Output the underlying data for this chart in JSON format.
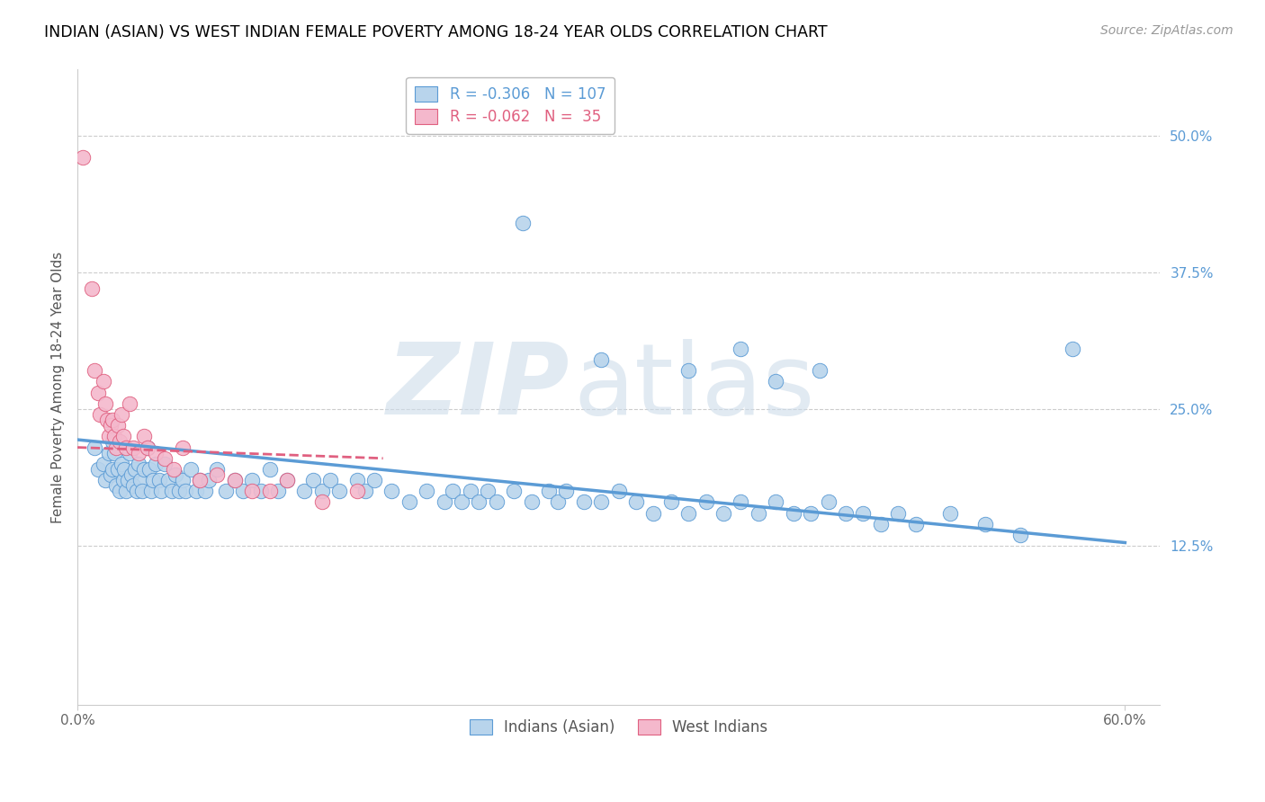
{
  "title": "INDIAN (ASIAN) VS WEST INDIAN FEMALE POVERTY AMONG 18-24 YEAR OLDS CORRELATION CHART",
  "source": "Source: ZipAtlas.com",
  "ylabel": "Female Poverty Among 18-24 Year Olds",
  "xlim": [
    0.0,
    0.62
  ],
  "ylim": [
    -0.02,
    0.56
  ],
  "x_tick_positions": [
    0.0,
    0.6
  ],
  "x_tick_labels": [
    "0.0%",
    "60.0%"
  ],
  "y_ticks_right": [
    0.5,
    0.375,
    0.25,
    0.125
  ],
  "y_tick_labels_right": [
    "50.0%",
    "37.5%",
    "25.0%",
    "12.5%"
  ],
  "legend_blue_r": "-0.306",
  "legend_blue_n": "107",
  "legend_pink_r": "-0.062",
  "legend_pink_n": "35",
  "blue_color": "#b8d4ec",
  "pink_color": "#f4b8cc",
  "line_blue": "#5b9bd5",
  "line_pink": "#e06080",
  "blue_scatter_x": [
    0.01,
    0.012,
    0.015,
    0.016,
    0.018,
    0.019,
    0.02,
    0.02,
    0.021,
    0.022,
    0.023,
    0.024,
    0.025,
    0.026,
    0.027,
    0.028,
    0.029,
    0.03,
    0.031,
    0.032,
    0.033,
    0.034,
    0.035,
    0.036,
    0.037,
    0.038,
    0.04,
    0.041,
    0.042,
    0.043,
    0.045,
    0.047,
    0.048,
    0.05,
    0.052,
    0.054,
    0.056,
    0.058,
    0.06,
    0.062,
    0.065,
    0.068,
    0.07,
    0.073,
    0.075,
    0.08,
    0.085,
    0.09,
    0.095,
    0.1,
    0.105,
    0.11,
    0.115,
    0.12,
    0.13,
    0.135,
    0.14,
    0.145,
    0.15,
    0.16,
    0.165,
    0.17,
    0.18,
    0.19,
    0.2,
    0.21,
    0.215,
    0.22,
    0.225,
    0.23,
    0.235,
    0.24,
    0.25,
    0.26,
    0.27,
    0.275,
    0.28,
    0.29,
    0.3,
    0.31,
    0.32,
    0.33,
    0.34,
    0.35,
    0.36,
    0.37,
    0.38,
    0.39,
    0.4,
    0.41,
    0.42,
    0.43,
    0.44,
    0.45,
    0.46,
    0.47,
    0.48,
    0.5,
    0.52,
    0.54,
    0.255,
    0.3,
    0.35,
    0.38,
    0.4,
    0.425,
    0.57
  ],
  "blue_scatter_y": [
    0.215,
    0.195,
    0.2,
    0.185,
    0.21,
    0.19,
    0.22,
    0.195,
    0.21,
    0.18,
    0.195,
    0.175,
    0.2,
    0.185,
    0.195,
    0.175,
    0.185,
    0.21,
    0.19,
    0.18,
    0.195,
    0.175,
    0.2,
    0.185,
    0.175,
    0.195,
    0.215,
    0.195,
    0.175,
    0.185,
    0.2,
    0.185,
    0.175,
    0.2,
    0.185,
    0.175,
    0.19,
    0.175,
    0.185,
    0.175,
    0.195,
    0.175,
    0.185,
    0.175,
    0.185,
    0.195,
    0.175,
    0.185,
    0.175,
    0.185,
    0.175,
    0.195,
    0.175,
    0.185,
    0.175,
    0.185,
    0.175,
    0.185,
    0.175,
    0.185,
    0.175,
    0.185,
    0.175,
    0.165,
    0.175,
    0.165,
    0.175,
    0.165,
    0.175,
    0.165,
    0.175,
    0.165,
    0.175,
    0.165,
    0.175,
    0.165,
    0.175,
    0.165,
    0.165,
    0.175,
    0.165,
    0.155,
    0.165,
    0.155,
    0.165,
    0.155,
    0.165,
    0.155,
    0.165,
    0.155,
    0.155,
    0.165,
    0.155,
    0.155,
    0.145,
    0.155,
    0.145,
    0.155,
    0.145,
    0.135,
    0.42,
    0.295,
    0.285,
    0.305,
    0.275,
    0.285,
    0.305
  ],
  "pink_scatter_x": [
    0.003,
    0.008,
    0.01,
    0.012,
    0.013,
    0.015,
    0.016,
    0.017,
    0.018,
    0.019,
    0.02,
    0.021,
    0.022,
    0.023,
    0.024,
    0.025,
    0.026,
    0.028,
    0.03,
    0.032,
    0.035,
    0.038,
    0.04,
    0.045,
    0.05,
    0.055,
    0.06,
    0.07,
    0.08,
    0.09,
    0.1,
    0.11,
    0.12,
    0.14,
    0.16
  ],
  "pink_scatter_y": [
    0.48,
    0.36,
    0.285,
    0.265,
    0.245,
    0.275,
    0.255,
    0.24,
    0.225,
    0.235,
    0.24,
    0.225,
    0.215,
    0.235,
    0.22,
    0.245,
    0.225,
    0.215,
    0.255,
    0.215,
    0.21,
    0.225,
    0.215,
    0.21,
    0.205,
    0.195,
    0.215,
    0.185,
    0.19,
    0.185,
    0.175,
    0.175,
    0.185,
    0.165,
    0.175
  ],
  "blue_line_x": [
    0.0,
    0.6
  ],
  "blue_line_y": [
    0.222,
    0.128
  ],
  "pink_line_x": [
    0.0,
    0.175
  ],
  "pink_line_y": [
    0.215,
    0.205
  ],
  "grid_color": "#cccccc",
  "spine_color": "#cccccc"
}
